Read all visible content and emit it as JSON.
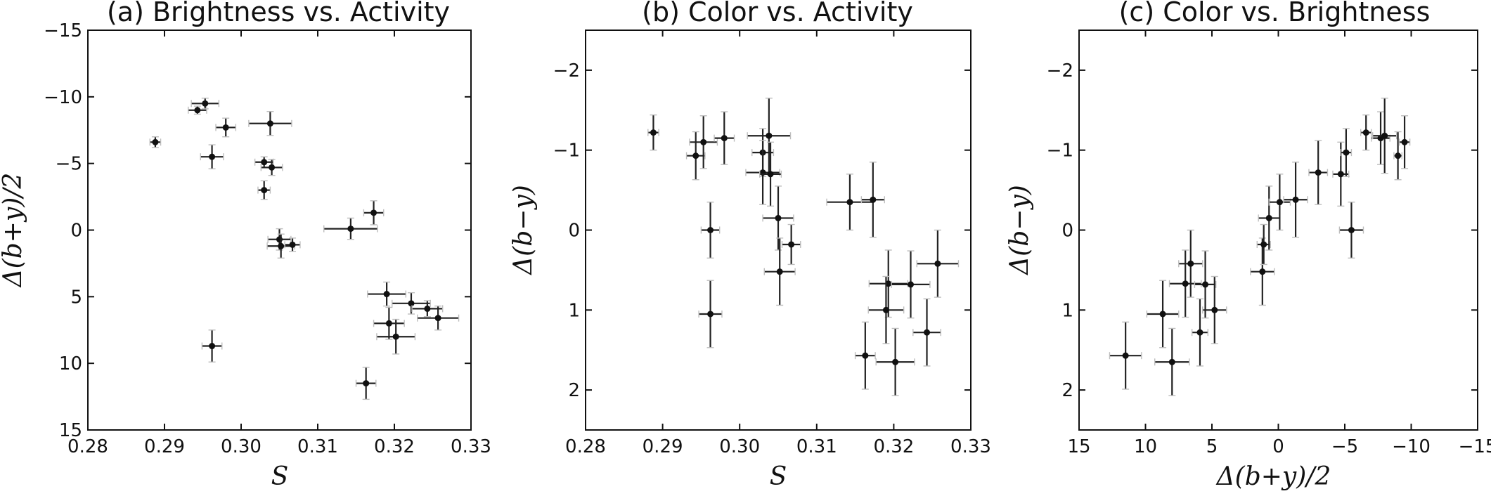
{
  "chart_data": [
    {
      "type": "scatter",
      "title": "(a) Brightness vs. Activity",
      "xlabel": "S",
      "ylabel": "Δ(b+y)/2",
      "xlim": [
        0.28,
        0.33
      ],
      "ylim": [
        15,
        -15
      ],
      "xticks": [
        0.28,
        0.29,
        0.3,
        0.31,
        0.32,
        0.33
      ],
      "xtick_labels": [
        "0.28",
        "0.29",
        "0.30",
        "0.31",
        "0.32",
        "0.33"
      ],
      "yticks": [
        -15,
        -10,
        -5,
        0,
        5,
        10,
        15
      ],
      "ytick_labels": [
        "−15",
        "−10",
        "−5",
        "0",
        "5",
        "10",
        "15"
      ],
      "points": [
        {
          "x": 0.2888,
          "y": -6.6,
          "xerr": 0.0007,
          "yerr": 0.4
        },
        {
          "x": 0.2943,
          "y": -9.0,
          "xerr": 0.0012,
          "yerr": 0.3
        },
        {
          "x": 0.2953,
          "y": -9.5,
          "xerr": 0.0018,
          "yerr": 0.4
        },
        {
          "x": 0.2962,
          "y": -5.5,
          "xerr": 0.0015,
          "yerr": 0.9
        },
        {
          "x": 0.298,
          "y": -7.7,
          "xerr": 0.0013,
          "yerr": 0.7
        },
        {
          "x": 0.3038,
          "y": -8.0,
          "xerr": 0.0028,
          "yerr": 0.9
        },
        {
          "x": 0.303,
          "y": -5.1,
          "xerr": 0.0012,
          "yerr": 0.4
        },
        {
          "x": 0.304,
          "y": -4.7,
          "xerr": 0.0014,
          "yerr": 0.6
        },
        {
          "x": 0.303,
          "y": -3.0,
          "xerr": 0.0008,
          "yerr": 0.7
        },
        {
          "x": 0.305,
          "y": 0.7,
          "xerr": 0.0015,
          "yerr": 0.8
        },
        {
          "x": 0.3052,
          "y": 1.2,
          "xerr": 0.0018,
          "yerr": 0.9
        },
        {
          "x": 0.3067,
          "y": 1.1,
          "xerr": 0.001,
          "yerr": 0.5
        },
        {
          "x": 0.3143,
          "y": -0.1,
          "xerr": 0.0035,
          "yerr": 0.8
        },
        {
          "x": 0.3173,
          "y": -1.3,
          "xerr": 0.0013,
          "yerr": 0.9
        },
        {
          "x": 0.319,
          "y": 4.8,
          "xerr": 0.0025,
          "yerr": 0.9
        },
        {
          "x": 0.3222,
          "y": 5.5,
          "xerr": 0.0025,
          "yerr": 0.8
        },
        {
          "x": 0.3243,
          "y": 5.9,
          "xerr": 0.002,
          "yerr": 0.6
        },
        {
          "x": 0.3257,
          "y": 6.6,
          "xerr": 0.0027,
          "yerr": 0.9
        },
        {
          "x": 0.3193,
          "y": 7.0,
          "xerr": 0.002,
          "yerr": 1.2
        },
        {
          "x": 0.3202,
          "y": 8.0,
          "xerr": 0.0025,
          "yerr": 1.3
        },
        {
          "x": 0.2962,
          "y": 8.7,
          "xerr": 0.0013,
          "yerr": 1.2
        },
        {
          "x": 0.3163,
          "y": 11.5,
          "xerr": 0.0013,
          "yerr": 1.2
        }
      ]
    },
    {
      "type": "scatter",
      "title": "(b) Color vs. Activity",
      "xlabel": "S",
      "ylabel": "Δ(b−y)",
      "xlim": [
        0.28,
        0.33
      ],
      "ylim": [
        2.5,
        -2.5
      ],
      "xticks": [
        0.28,
        0.29,
        0.3,
        0.31,
        0.32,
        0.33
      ],
      "xtick_labels": [
        "0.28",
        "0.29",
        "0.30",
        "0.31",
        "0.32",
        "0.33"
      ],
      "yticks": [
        -2,
        -1,
        0,
        1,
        2
      ],
      "ytick_labels": [
        "−2",
        "−1",
        "0",
        "1",
        "2"
      ],
      "points": [
        {
          "x": 0.2888,
          "y": -1.22,
          "xerr": 0.0007,
          "yerr": 0.22
        },
        {
          "x": 0.2943,
          "y": -0.93,
          "xerr": 0.0012,
          "yerr": 0.3
        },
        {
          "x": 0.2953,
          "y": -1.1,
          "xerr": 0.0018,
          "yerr": 0.33
        },
        {
          "x": 0.298,
          "y": -1.15,
          "xerr": 0.0013,
          "yerr": 0.33
        },
        {
          "x": 0.3038,
          "y": -1.18,
          "xerr": 0.0028,
          "yerr": 0.47
        },
        {
          "x": 0.303,
          "y": -0.97,
          "xerr": 0.0014,
          "yerr": 0.3
        },
        {
          "x": 0.303,
          "y": -0.72,
          "xerr": 0.0022,
          "yerr": 0.4
        },
        {
          "x": 0.304,
          "y": -0.7,
          "xerr": 0.0014,
          "yerr": 0.4
        },
        {
          "x": 0.305,
          "y": -0.15,
          "xerr": 0.002,
          "yerr": 0.4
        },
        {
          "x": 0.3067,
          "y": 0.18,
          "xerr": 0.0012,
          "yerr": 0.25
        },
        {
          "x": 0.3052,
          "y": 0.52,
          "xerr": 0.002,
          "yerr": 0.42
        },
        {
          "x": 0.2962,
          "y": 0.0,
          "xerr": 0.0012,
          "yerr": 0.35
        },
        {
          "x": 0.2962,
          "y": 1.05,
          "xerr": 0.0015,
          "yerr": 0.42
        },
        {
          "x": 0.3143,
          "y": -0.35,
          "xerr": 0.003,
          "yerr": 0.35
        },
        {
          "x": 0.3173,
          "y": -0.38,
          "xerr": 0.0015,
          "yerr": 0.47
        },
        {
          "x": 0.3193,
          "y": 0.67,
          "xerr": 0.0025,
          "yerr": 0.42
        },
        {
          "x": 0.3222,
          "y": 0.68,
          "xerr": 0.0025,
          "yerr": 0.42
        },
        {
          "x": 0.3257,
          "y": 0.42,
          "xerr": 0.0027,
          "yerr": 0.42
        },
        {
          "x": 0.319,
          "y": 1.0,
          "xerr": 0.0023,
          "yerr": 0.42
        },
        {
          "x": 0.3243,
          "y": 1.28,
          "xerr": 0.0018,
          "yerr": 0.42
        },
        {
          "x": 0.3163,
          "y": 1.57,
          "xerr": 0.0013,
          "yerr": 0.42
        },
        {
          "x": 0.3202,
          "y": 1.65,
          "xerr": 0.0025,
          "yerr": 0.42
        }
      ]
    },
    {
      "type": "scatter",
      "title": "(c) Color vs. Brightness",
      "xlabel": "Δ(b+y)/2",
      "ylabel": "Δ(b−y)",
      "xlim": [
        15,
        -15
      ],
      "ylim": [
        2.5,
        -2.5
      ],
      "xticks": [
        15,
        10,
        5,
        0,
        -5,
        -10,
        -15
      ],
      "xtick_labels": [
        "15",
        "10",
        "5",
        "0",
        "−5",
        "−10",
        "−15"
      ],
      "yticks": [
        -2,
        -1,
        0,
        1,
        2
      ],
      "ytick_labels": [
        "−2",
        "−1",
        "0",
        "1",
        "2"
      ],
      "points": [
        {
          "x": 11.5,
          "y": 1.57,
          "xerr": 1.2,
          "yerr": 0.42
        },
        {
          "x": 8.7,
          "y": 1.05,
          "xerr": 1.2,
          "yerr": 0.42
        },
        {
          "x": 8.0,
          "y": 1.65,
          "xerr": 1.3,
          "yerr": 0.42
        },
        {
          "x": 7.0,
          "y": 0.67,
          "xerr": 1.2,
          "yerr": 0.42
        },
        {
          "x": 6.6,
          "y": 0.42,
          "xerr": 0.9,
          "yerr": 0.42
        },
        {
          "x": 5.9,
          "y": 1.28,
          "xerr": 0.6,
          "yerr": 0.42
        },
        {
          "x": 5.5,
          "y": 0.68,
          "xerr": 0.8,
          "yerr": 0.42
        },
        {
          "x": 4.8,
          "y": 1.0,
          "xerr": 0.9,
          "yerr": 0.42
        },
        {
          "x": 1.2,
          "y": 0.52,
          "xerr": 0.9,
          "yerr": 0.42
        },
        {
          "x": 1.1,
          "y": 0.18,
          "xerr": 0.5,
          "yerr": 0.25
        },
        {
          "x": 0.7,
          "y": -0.15,
          "xerr": 0.8,
          "yerr": 0.4
        },
        {
          "x": -0.1,
          "y": -0.35,
          "xerr": 0.8,
          "yerr": 0.35
        },
        {
          "x": -1.3,
          "y": -0.38,
          "xerr": 0.9,
          "yerr": 0.47
        },
        {
          "x": -3.0,
          "y": -0.72,
          "xerr": 0.7,
          "yerr": 0.4
        },
        {
          "x": -4.7,
          "y": -0.7,
          "xerr": 0.6,
          "yerr": 0.4
        },
        {
          "x": -5.1,
          "y": -0.97,
          "xerr": 0.4,
          "yerr": 0.3
        },
        {
          "x": -5.5,
          "y": 0.0,
          "xerr": 0.9,
          "yerr": 0.35
        },
        {
          "x": -6.6,
          "y": -1.22,
          "xerr": 0.4,
          "yerr": 0.22
        },
        {
          "x": -7.7,
          "y": -1.15,
          "xerr": 0.7,
          "yerr": 0.33
        },
        {
          "x": -8.0,
          "y": -1.18,
          "xerr": 0.9,
          "yerr": 0.47
        },
        {
          "x": -9.0,
          "y": -0.93,
          "xerr": 0.3,
          "yerr": 0.3
        },
        {
          "x": -9.5,
          "y": -1.1,
          "xerr": 0.4,
          "yerr": 0.33
        }
      ]
    }
  ]
}
